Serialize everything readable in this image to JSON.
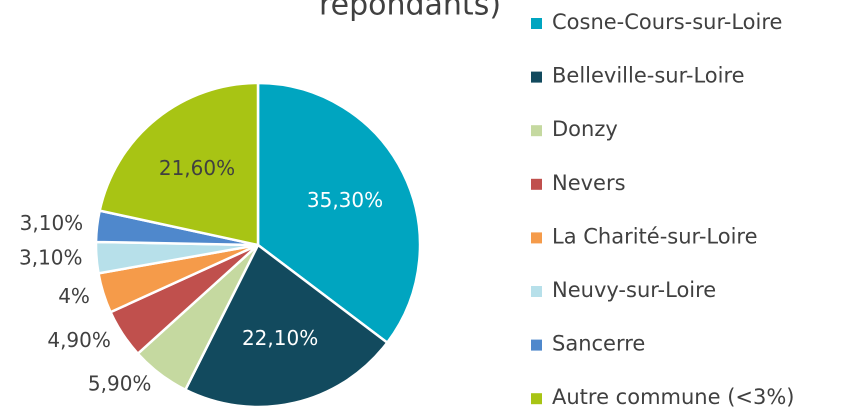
{
  "chart_data": {
    "type": "pie",
    "title": "répondants)",
    "categories": [
      "Cosne-Cours-sur-Loire",
      "Belleville-sur-Loire",
      "Donzy",
      "Nevers",
      "La Charité-sur-Loire",
      "Neuvy-sur-Loire",
      "Sancerre",
      "Autre commune (<3%)"
    ],
    "values": [
      35.3,
      22.1,
      5.9,
      4.9,
      4,
      3.1,
      3.1,
      21.6
    ],
    "value_labels": [
      "35,30%",
      "22,10%",
      "5,90%",
      "4,90%",
      "4%",
      "3,10%",
      "3,10%",
      "21,60%"
    ],
    "colors": [
      "#00a5c0",
      "#124a5e",
      "#c5d9a0",
      "#c0504d",
      "#f59b4a",
      "#b7e0ea",
      "#4f88cc",
      "#a8c414"
    ],
    "legend": "right"
  }
}
